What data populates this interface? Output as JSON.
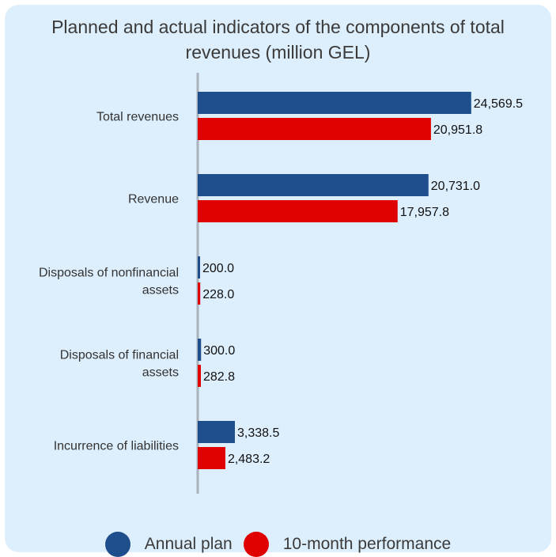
{
  "chart_data": {
    "type": "bar",
    "orientation": "horizontal",
    "title": "Planned and actual indicators of the components of total revenues (million GEL)",
    "title_lines": [
      "Planned and actual indicators of the components of total",
      "revenues (million GEL)"
    ],
    "categories": [
      [
        "Total revenues"
      ],
      [
        "Revenue"
      ],
      [
        "Disposals of nonfinancial",
        "assets"
      ],
      [
        "Disposals of financial",
        "assets"
      ],
      [
        "Incurrence of liabilities"
      ]
    ],
    "series": [
      {
        "name": "Annual plan",
        "color": "#1f4e8c",
        "values": [
          24569.5,
          20731.0,
          200.0,
          300.0,
          3338.5
        ],
        "labels": [
          "24,569.5",
          "20,731.0",
          "200.0",
          "300.0",
          "3,338.5"
        ]
      },
      {
        "name": "10-month performance",
        "color": "#e00000",
        "values": [
          20951.8,
          17957.8,
          228.0,
          282.8,
          2483.2
        ],
        "labels": [
          "20,951.8",
          "17,957.8",
          "228.0",
          "282.8",
          "2,483.2"
        ]
      }
    ],
    "xlim": [
      0,
      27000
    ],
    "grid": false,
    "legend_position": "bottom"
  }
}
